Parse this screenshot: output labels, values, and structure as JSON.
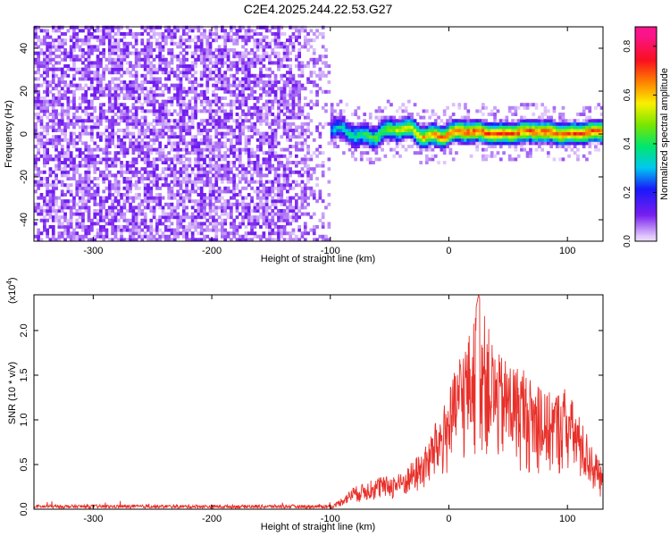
{
  "title": "C2E4.2025.244.22.53.G27",
  "colors": {
    "snr_line": "#e8302a",
    "noise_purple": "#7a1ff0",
    "axis": "#000000"
  },
  "chart_data": [
    {
      "type": "heatmap",
      "name": "spectrogram",
      "xlabel": "Height of straight line (km)",
      "ylabel": "Frequency (Hz)",
      "xlim": [
        -350,
        130
      ],
      "ylim": [
        -50,
        50
      ],
      "x_ticks": [
        -300,
        -200,
        -100,
        0,
        100
      ],
      "y_ticks": [
        -40,
        -20,
        0,
        20,
        40
      ],
      "noise_region_x": [
        -350,
        -100
      ],
      "signal_region_x": [
        -120,
        130
      ],
      "signal_center_frequency": 0,
      "signal_halfwidth_hz": 4,
      "colorbar": {
        "label": "Normalized spectral amplitude",
        "range": [
          0.0,
          0.88
        ],
        "ticks": [
          "0.0",
          "0.2",
          "0.4",
          "0.6",
          "0.8"
        ],
        "tick_values": [
          0.0,
          0.2,
          0.4,
          0.6,
          0.8
        ]
      }
    },
    {
      "type": "line",
      "name": "snr",
      "xlabel": "Height of straight line (km)",
      "ylabel": "SNR (10 * v/v)",
      "y_multiplier": "(x10",
      "y_multiplier_exp": "4",
      "y_multiplier_close": ")",
      "xlim": [
        -350,
        130
      ],
      "ylim": [
        0,
        2.4
      ],
      "x_ticks": [
        -300,
        -200,
        -100,
        0,
        100
      ],
      "y_ticks": [
        "0.0",
        "0.5",
        "1.0",
        "1.5",
        "2.0"
      ],
      "y_tick_values": [
        0.0,
        0.5,
        1.0,
        1.5,
        2.0
      ],
      "envelope": {
        "x": [
          -350,
          -100,
          -80,
          -60,
          -40,
          -20,
          0,
          10,
          20,
          25,
          40,
          60,
          80,
          100,
          115,
          130
        ],
        "y": [
          0.02,
          0.02,
          0.25,
          0.35,
          0.4,
          0.7,
          1.3,
          1.8,
          2.05,
          2.4,
          1.75,
          1.6,
          1.3,
          1.35,
          0.9,
          0.45
        ]
      }
    }
  ]
}
